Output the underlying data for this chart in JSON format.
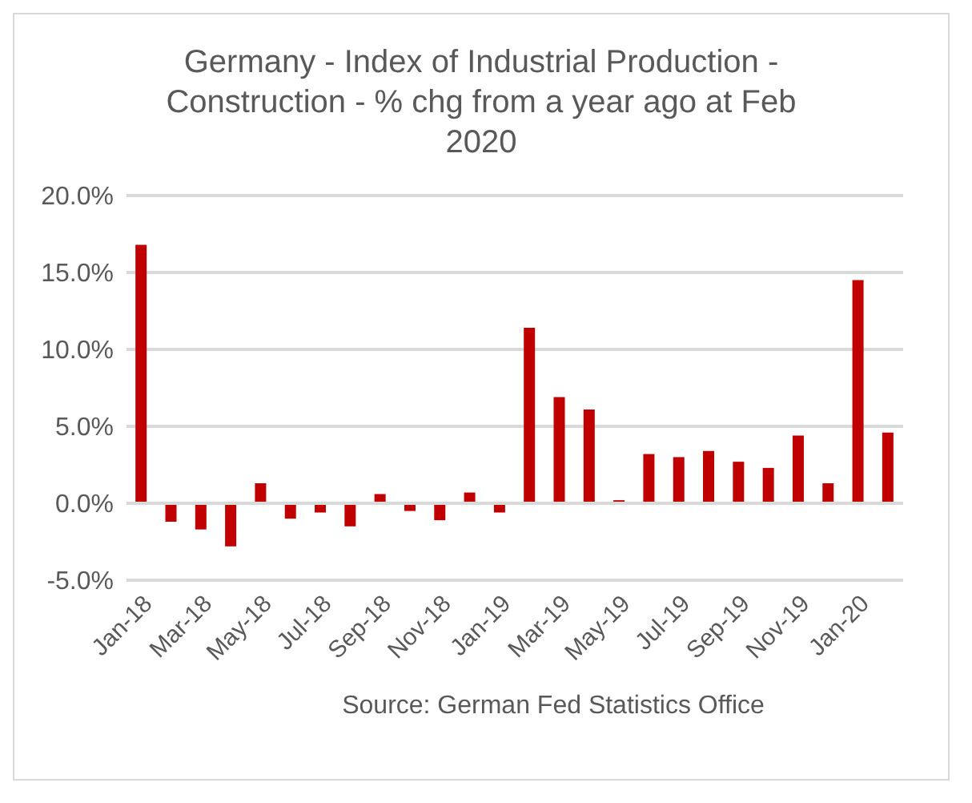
{
  "chart_data": {
    "type": "bar",
    "title": "Germany - Index of Industrial Production - Construction - % chg from a year ago at Feb 2020",
    "categories": [
      "Jan-18",
      null,
      "Mar-18",
      null,
      "May-18",
      null,
      "Jul-18",
      null,
      "Sep-18",
      null,
      "Nov-18",
      null,
      "Jan-19",
      null,
      "Mar-19",
      null,
      "May-19",
      null,
      "Jul-19",
      null,
      "Sep-19",
      null,
      "Nov-19",
      null,
      "Jan-20",
      null
    ],
    "series": [
      {
        "color": "#c00000",
        "values": [
          16.8,
          -1.2,
          -1.7,
          -2.8,
          1.3,
          -1.0,
          -0.6,
          -1.5,
          0.6,
          -0.5,
          -1.1,
          0.7,
          -0.6,
          11.4,
          6.9,
          6.1,
          0.2,
          3.2,
          3.0,
          3.4,
          2.7,
          2.3,
          4.4,
          1.3,
          14.5,
          4.6
        ]
      }
    ],
    "ylim": [
      -5,
      20
    ],
    "yticks": [
      {
        "value": -5,
        "label": "-5.0%"
      },
      {
        "value": 0,
        "label": "0.0%"
      },
      {
        "value": 5,
        "label": "5.0%"
      },
      {
        "value": 10,
        "label": "10.0%"
      },
      {
        "value": 15,
        "label": "15.0%"
      },
      {
        "value": 20,
        "label": "20.0%"
      }
    ],
    "grid": "y",
    "legend": false,
    "annotations": [
      "Source: German Fed Statistics Office"
    ]
  }
}
